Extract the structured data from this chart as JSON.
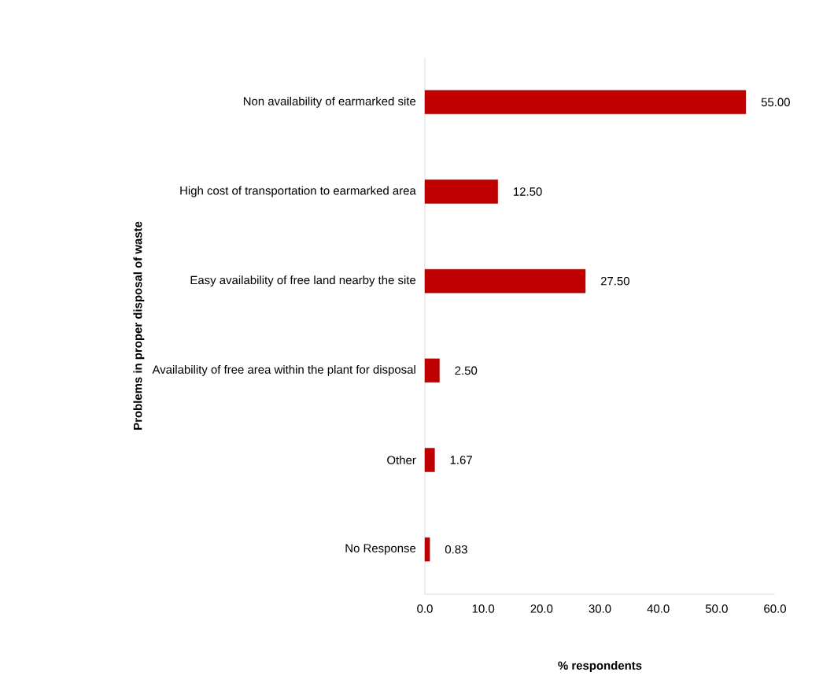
{
  "chart_data": {
    "type": "bar",
    "orientation": "horizontal",
    "ylabel": "Problems in proper disposal of waste",
    "xlabel": "% respondents",
    "categories": [
      "Non availability of earmarked site",
      "High cost of transportation to earmarked area",
      "Easy availability of free land nearby the site",
      "Availability of free area within the plant for disposal",
      "Other",
      "No Response"
    ],
    "values": [
      55,
      12.5,
      27.5,
      2.5,
      1.67,
      0.83
    ],
    "value_labels": [
      "55.00",
      "12.50",
      "27.50",
      "2.50",
      "1.67",
      "0.83"
    ],
    "color": "#c00000",
    "xlim": [
      0,
      60
    ],
    "xticks": [
      {
        "value": 0,
        "label": "0.0"
      },
      {
        "value": 10,
        "label": "10.0"
      },
      {
        "value": 20,
        "label": "20.0"
      },
      {
        "value": 30,
        "label": "30.0"
      },
      {
        "value": 40,
        "label": "40.0"
      },
      {
        "value": 50,
        "label": "50.0"
      },
      {
        "value": 60,
        "label": "60.0"
      }
    ]
  }
}
